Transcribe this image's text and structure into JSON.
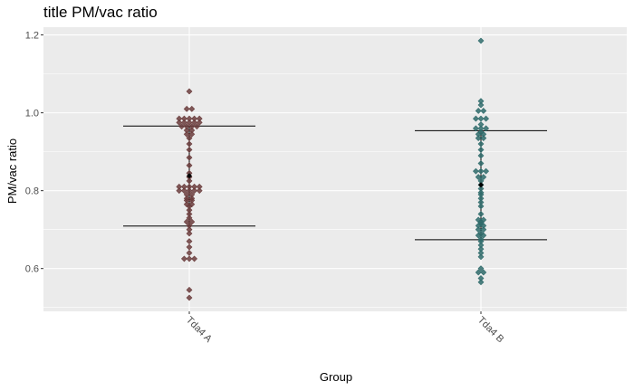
{
  "chart_data": {
    "type": "scatter",
    "title": "title PM/vac ratio",
    "xlabel": "Group",
    "ylabel": "PM/vac ratio",
    "ylim": [
      0.49,
      1.22
    ],
    "yticks": [
      0.6,
      0.8,
      1.0,
      1.2
    ],
    "ytick_labels": [
      "0.6",
      "0.8",
      "1.0",
      "1.2"
    ],
    "categories": [
      "Tda4 A",
      "Tda4 B"
    ],
    "grid": true,
    "series": [
      {
        "category": "Tda4 A",
        "color": "#6b3d3d",
        "values": [
          1.055,
          1.01,
          1.01,
          0.985,
          0.985,
          0.985,
          0.985,
          0.985,
          0.975,
          0.975,
          0.975,
          0.975,
          0.975,
          0.965,
          0.965,
          0.965,
          0.965,
          0.955,
          0.955,
          0.945,
          0.945,
          0.935,
          0.92,
          0.905,
          0.885,
          0.865,
          0.845,
          0.835,
          0.825,
          0.81,
          0.81,
          0.81,
          0.81,
          0.81,
          0.8,
          0.8,
          0.8,
          0.8,
          0.8,
          0.79,
          0.79,
          0.78,
          0.78,
          0.775,
          0.775,
          0.765,
          0.765,
          0.76,
          0.75,
          0.74,
          0.73,
          0.72,
          0.72,
          0.71,
          0.7,
          0.69,
          0.67,
          0.655,
          0.64,
          0.625,
          0.625,
          0.625,
          0.545,
          0.525
        ],
        "mean": 0.838,
        "sd_low": 0.709,
        "sd_high": 0.966
      },
      {
        "category": "Tda4 B",
        "color": "#2f6b6b",
        "values": [
          1.185,
          1.03,
          1.02,
          1.005,
          1.005,
          0.985,
          0.985,
          0.985,
          0.97,
          0.96,
          0.96,
          0.96,
          0.95,
          0.945,
          0.945,
          0.935,
          0.935,
          0.92,
          0.905,
          0.89,
          0.87,
          0.85,
          0.85,
          0.85,
          0.835,
          0.835,
          0.825,
          0.815,
          0.805,
          0.795,
          0.79,
          0.78,
          0.77,
          0.76,
          0.74,
          0.725,
          0.725,
          0.72,
          0.715,
          0.71,
          0.71,
          0.7,
          0.7,
          0.69,
          0.685,
          0.685,
          0.675,
          0.67,
          0.66,
          0.65,
          0.64,
          0.63,
          0.6,
          0.59,
          0.59,
          0.575,
          0.565
        ],
        "mean": 0.815,
        "sd_low": 0.674,
        "sd_high": 0.954
      }
    ]
  }
}
